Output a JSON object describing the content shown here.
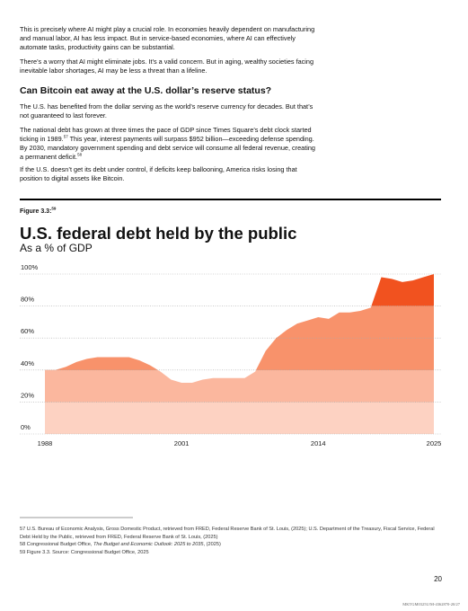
{
  "paragraphs": [
    [
      "This is precisely where AI might play a crucial role. In economies heavily dependent on manufacturing and manual labor, AI has less impact. But in service-based economies, where AI can effectively automate tasks, productivity gains can be substantial."
    ],
    [
      "There’s a worry that AI might eliminate jobs. It’s a valid concern. But in aging, wealthy societies facing inevitable labor shortages, AI may be less a threat than a lifeline."
    ]
  ],
  "heading": "Can Bitcoin eat away at the U.S. dollar’s reserve status?",
  "section_paragraphs": [
    [
      "The U.S. has benefited from the dollar serving as the world’s reserve currency for decades. But that’s not guaranteed to last forever."
    ],
    [
      "The national debt has grown at three times the pace of GDP since Times Square’s debt clock started ticking in 1989.",
      {
        "sup": "57"
      },
      " This year, interest payments will surpass $952 billion—exceeding defense spending. By 2030, mandatory government spending and debt service will consume all federal revenue, creating a permanent deficit.",
      {
        "sup": "58"
      }
    ],
    [
      "If the U.S. doesn’t get its debt under control, if deficits keep ballooning, America risks losing that position to digital assets like Bitcoin."
    ]
  ],
  "figure_label": [
    "Figure 3.3:",
    {
      "sup": "59"
    }
  ],
  "chart_data": {
    "type": "area",
    "title": "U.S. federal debt held by the public",
    "subtitle": "As a % of GDP",
    "x": [
      1988,
      1989,
      1990,
      1991,
      1992,
      1993,
      1994,
      1995,
      1996,
      1997,
      1998,
      1999,
      2000,
      2001,
      2002,
      2003,
      2004,
      2005,
      2006,
      2007,
      2008,
      2009,
      2010,
      2011,
      2012,
      2013,
      2014,
      2015,
      2016,
      2017,
      2018,
      2019,
      2020,
      2021,
      2022,
      2023,
      2024,
      2025
    ],
    "values": [
      40,
      40,
      42,
      45,
      47,
      48,
      48,
      48,
      48,
      46,
      43,
      39,
      34,
      32,
      32,
      34,
      35,
      35,
      35,
      35,
      39,
      52,
      60,
      65,
      69,
      71,
      73,
      72,
      76,
      76,
      77,
      79,
      98,
      97,
      95,
      96,
      98,
      100
    ],
    "xlim": [
      1988,
      2025
    ],
    "xticks": [
      1988,
      2001,
      2014,
      2025
    ],
    "ylim": [
      0,
      100
    ],
    "yticks": [
      {
        "value": 0,
        "label": "0%"
      },
      {
        "value": 20,
        "label": "20%"
      },
      {
        "value": 40,
        "label": "40%"
      },
      {
        "value": 60,
        "label": "60%"
      },
      {
        "value": 80,
        "label": "80%"
      },
      {
        "value": 100,
        "label": "100%"
      }
    ],
    "band_colors": [
      "#fdd2c2",
      "#fbb79e",
      "#f8926b",
      "#f8926b",
      "#f1521f"
    ],
    "grid": true
  },
  "footnotes": [
    [
      "57 U.S. Bureau of Economic Analysis, Gross Domestic Product, retrieved from FRED, Federal Reserve Bank of St. Louis, (2025); U.S. Department of the Treasury, Fiscal Service, Federal Debt Held by the Public, retrieved from FRED, Federal Reserve Bank of St. Louis, (2025)"
    ],
    [
      "58 Congressional Budget Office, ",
      {
        "em": "The Budget and Economic Outlook: 2025 to 2035"
      },
      ", (2025)"
    ],
    [
      "59 Figure 3.3. Source: Congressional Budget Office, 2025"
    ]
  ],
  "page_number": "20",
  "doc_code": "MKTGM0325U/M-4362870-20/27"
}
